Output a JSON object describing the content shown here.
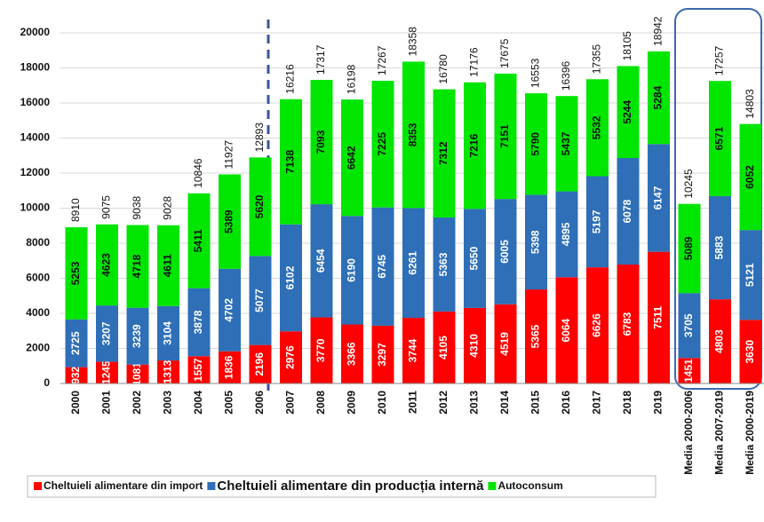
{
  "chart_data": {
    "type": "stacked_bar",
    "categories": [
      "2000",
      "2001",
      "2002",
      "2003",
      "2004",
      "2005",
      "2006",
      "2007",
      "2008",
      "2009",
      "2010",
      "2011",
      "2012",
      "2013",
      "2014",
      "2015",
      "2016",
      "2017",
      "2018",
      "2019",
      "Media 2000-2006",
      "Media 2007-2019",
      "Media 2000-2019"
    ],
    "series": [
      {
        "name": "Cheltuieli alimentare din import",
        "color": "#ff0000",
        "values": [
          932,
          1245,
          1081,
          1313,
          1557,
          1836,
          2196,
          2976,
          3770,
          3366,
          3297,
          3744,
          4105,
          4310,
          4519,
          5365,
          6064,
          6626,
          6783,
          7511,
          1451,
          4803,
          3630
        ]
      },
      {
        "name": "Cheltuieli alimentare din producția internă",
        "color": "#2e6fb7",
        "values": [
          2725,
          3207,
          3239,
          3104,
          3878,
          4702,
          5077,
          6102,
          6454,
          6190,
          6745,
          6261,
          5363,
          5650,
          6005,
          5398,
          4895,
          5197,
          6078,
          6147,
          3705,
          5883,
          5121
        ]
      },
      {
        "name": "Autoconsum",
        "color": "#00e600",
        "values": [
          5253,
          4623,
          4718,
          4611,
          5411,
          5389,
          5620,
          7138,
          7093,
          6642,
          7225,
          8353,
          7312,
          7216,
          7151,
          5790,
          5437,
          5532,
          5244,
          5284,
          5089,
          6571,
          6052
        ]
      }
    ],
    "totals": [
      8910,
      9075,
      9038,
      9028,
      10846,
      11927,
      12893,
      16216,
      17317,
      16198,
      17267,
      18358,
      16780,
      17176,
      17675,
      16553,
      16396,
      17355,
      18105,
      18942,
      10245,
      17257,
      14803
    ],
    "ylim": [
      0,
      20000
    ],
    "yticks": [
      0,
      2000,
      4000,
      6000,
      8000,
      10000,
      12000,
      14000,
      16000,
      18000,
      20000
    ],
    "grid": true
  }
}
